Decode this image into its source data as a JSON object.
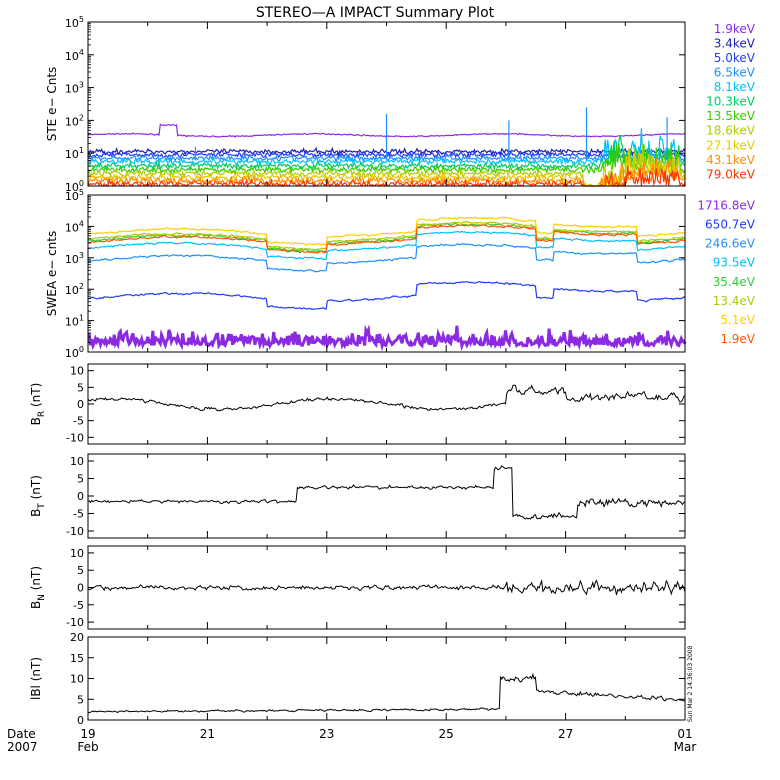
{
  "title": "STEREO—A IMPACT Summary Plot",
  "date_label": [
    "Date",
    "2007"
  ],
  "x_ticks": [
    {
      "day": 19,
      "top": "19",
      "bottom": "Feb"
    },
    {
      "day": 21,
      "top": "21",
      "bottom": ""
    },
    {
      "day": 23,
      "top": "23",
      "bottom": ""
    },
    {
      "day": 25,
      "top": "25",
      "bottom": ""
    },
    {
      "day": 27,
      "top": "27",
      "bottom": ""
    },
    {
      "day": 29,
      "top": "01",
      "bottom": "Mar"
    }
  ],
  "timestamp": "Sun Mar  2 14:36:03 2008",
  "chart_data": [
    {
      "id": "ste",
      "type": "line",
      "ylabel": "STE e− Cnts",
      "scale": "log",
      "ylim_exp": [
        0,
        5
      ],
      "x_range_days": [
        19,
        29
      ],
      "series": [
        {
          "name": "1.9keV",
          "color": "#8a2be2",
          "level_exp": 1.55
        },
        {
          "name": "3.4keV",
          "color": "#1e1eb4",
          "level_exp": 1.05
        },
        {
          "name": "5.0keV",
          "color": "#1f3bff",
          "level_exp": 0.95
        },
        {
          "name": "6.5keV",
          "color": "#1e90ff",
          "level_exp": 0.85
        },
        {
          "name": "8.1keV",
          "color": "#00bfff",
          "level_exp": 0.75
        },
        {
          "name": "10.3keV",
          "color": "#00cc66",
          "level_exp": 0.62
        },
        {
          "name": "13.5keV",
          "color": "#33cc00",
          "level_exp": 0.5
        },
        {
          "name": "18.6keV",
          "color": "#b3cc00",
          "level_exp": 0.38
        },
        {
          "name": "27.1keV",
          "color": "#e6c800",
          "level_exp": 0.27
        },
        {
          "name": "43.1keV",
          "color": "#ff8c00",
          "level_exp": 0.16
        },
        {
          "name": "79.0keV",
          "color": "#ff3300",
          "level_exp": 0.06
        }
      ]
    },
    {
      "id": "swea",
      "type": "line",
      "ylabel": "SWEA e− cnts",
      "scale": "log",
      "ylim_exp": [
        0,
        5
      ],
      "x_range_days": [
        19,
        29
      ],
      "series": [
        {
          "name": "1716.8eV",
          "color": "#8a2be2",
          "level_exp": 0.5
        },
        {
          "name": "650.7eV",
          "color": "#1f3bff",
          "level_exp": 1.75
        },
        {
          "name": "246.6eV",
          "color": "#1e90ff",
          "level_exp": 2.95
        },
        {
          "name": "93.5eV",
          "color": "#00bfff",
          "level_exp": 3.35
        },
        {
          "name": "35.4eV",
          "color": "#33cc33",
          "level_exp": 3.6
        },
        {
          "name": "13.4eV",
          "color": "#aacc00",
          "level_exp": 3.65
        },
        {
          "name": "5.1eV",
          "color": "#ffcc00",
          "level_exp": 3.8
        },
        {
          "name": "1.9eV",
          "color": "#ff5500",
          "level_exp": 3.55
        }
      ]
    },
    {
      "id": "br",
      "type": "line",
      "ylabel_main": "B",
      "ylabel_sub": "R",
      "ylabel_unit": "(nT)",
      "ylim": [
        -12,
        12
      ],
      "yticks": [
        -10,
        -5,
        0,
        5,
        10
      ],
      "x_range_days": [
        19,
        29
      ],
      "series": [
        {
          "color": "#000000"
        }
      ]
    },
    {
      "id": "bt",
      "type": "line",
      "ylabel_main": "B",
      "ylabel_sub": "T",
      "ylabel_unit": "(nT)",
      "ylim": [
        -12,
        12
      ],
      "yticks": [
        -10,
        -5,
        0,
        5,
        10
      ],
      "x_range_days": [
        19,
        29
      ],
      "series": [
        {
          "color": "#000000"
        }
      ]
    },
    {
      "id": "bn",
      "type": "line",
      "ylabel_main": "B",
      "ylabel_sub": "N",
      "ylabel_unit": "(nT)",
      "ylim": [
        -12,
        12
      ],
      "yticks": [
        -10,
        -5,
        0,
        5,
        10
      ],
      "x_range_days": [
        19,
        29
      ],
      "series": [
        {
          "color": "#000000"
        }
      ]
    },
    {
      "id": "bmag",
      "type": "line",
      "ylabel_main": "lBl",
      "ylabel_sub": "",
      "ylabel_unit": "(nT)",
      "ylim": [
        0,
        20
      ],
      "yticks": [
        0,
        5,
        10,
        15,
        20
      ],
      "x_range_days": [
        19,
        29
      ],
      "series": [
        {
          "color": "#000000"
        }
      ]
    }
  ]
}
